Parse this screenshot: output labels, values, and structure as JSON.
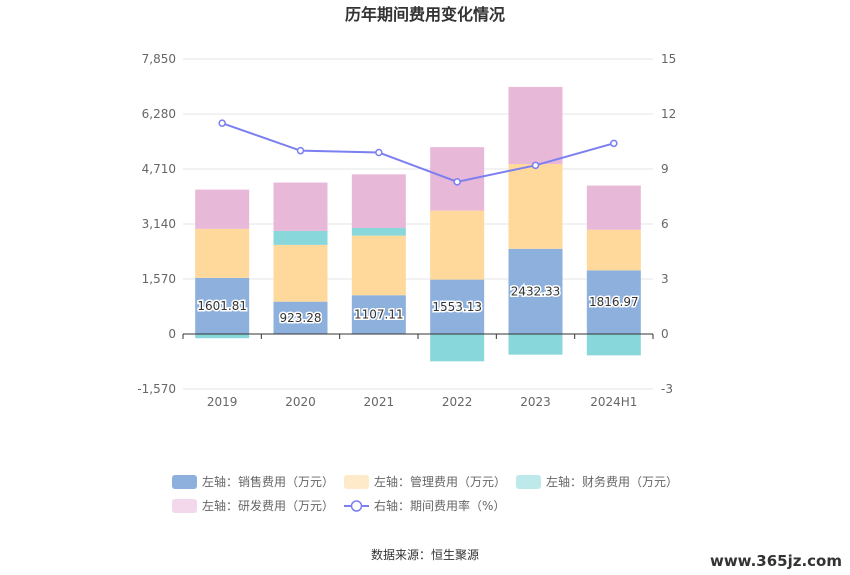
{
  "chart_data": {
    "type": "bar",
    "title": "历年期间费用变化情况",
    "categories": [
      "2019",
      "2020",
      "2021",
      "2022",
      "2023",
      "2024H1"
    ],
    "left_axis": {
      "min": -1570,
      "max": 7850,
      "ticks": [
        "-1,570",
        "0",
        "1,570",
        "3,140",
        "4,710",
        "6,280",
        "7,850"
      ],
      "tick_values": [
        -1570,
        0,
        1570,
        3140,
        4710,
        6280,
        7850
      ]
    },
    "right_axis": {
      "min": -3,
      "max": 15,
      "ticks": [
        "-3",
        "0",
        "3",
        "6",
        "9",
        "12",
        "15"
      ],
      "tick_values": [
        -3,
        0,
        3,
        6,
        9,
        12,
        15
      ]
    },
    "series": [
      {
        "name": "左轴：销售费用（万元）",
        "color": "#8eb0dd",
        "values": [
          1601.81,
          923.28,
          1107.11,
          1553.13,
          2432.33,
          1816.97
        ],
        "labels": [
          "1601.81",
          "923.28",
          "1107.11",
          "1553.13",
          "2432.33",
          "1816.97"
        ]
      },
      {
        "name": "左轴：管理费用（万元）",
        "color": "#fed99b",
        "values": [
          1400,
          1620,
          1700,
          1970,
          2420,
          1160
        ]
      },
      {
        "name": "左轴：财务费用（万元）",
        "color": "#88d7da",
        "values": [
          -120,
          400,
          220,
          -780,
          -590,
          -610
        ]
      },
      {
        "name": "左轴：研发费用（万元）",
        "color": "#e8b8d9",
        "values": [
          1120,
          1380,
          1530,
          1810,
          2200,
          1260
        ]
      },
      {
        "name": "右轴：期间费用率（%）",
        "color": "#7b7ff0",
        "type": "line",
        "axis": "right",
        "values": [
          11.5,
          10.0,
          9.9,
          8.3,
          9.2,
          10.4
        ]
      }
    ],
    "grid": true,
    "legend_position": "bottom"
  },
  "source_text": "数据来源：恒生聚源",
  "watermark_text": "www.365jz.com"
}
